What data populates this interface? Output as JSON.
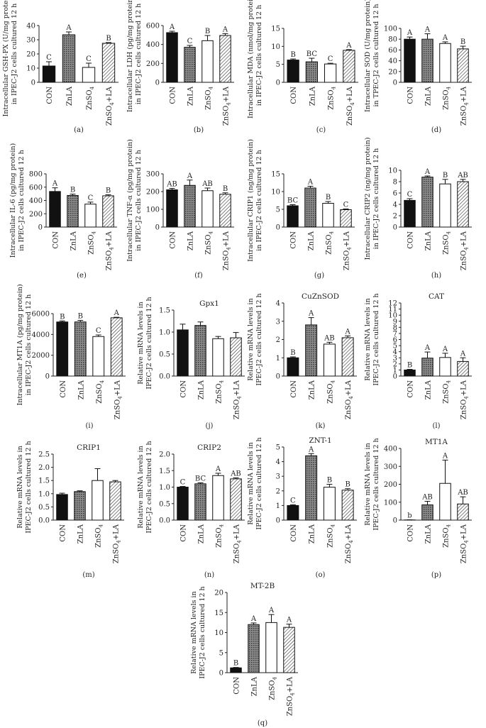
{
  "colors": {
    "axis": "#222222",
    "black": "#111111",
    "white": "#ffffff",
    "gray": "#9a9a9a"
  },
  "chart_data": [
    {
      "id": "a",
      "type": "bar",
      "panel_label": "(a)",
      "ylabel": [
        "Intracellular GSH-PX (U/mg protein)",
        "in IPEC-J2 cells cultured 12 h"
      ],
      "categories": [
        "CON",
        "ZnLA",
        "ZnSO4",
        "ZnSO4+LA"
      ],
      "values": [
        11.5,
        33.5,
        10.5,
        27.5
      ],
      "errors": [
        3,
        2,
        3,
        0.5
      ],
      "letters": [
        "C",
        "A",
        "C",
        "B"
      ],
      "ylim": [
        0,
        40
      ],
      "yticks": [
        0,
        10,
        20,
        30,
        40
      ]
    },
    {
      "id": "b",
      "type": "bar",
      "panel_label": "(b)",
      "ylabel": [
        "Intracellular LDH (pg/mg protein)",
        "in IPEC-J2 cells cultured 12 h"
      ],
      "categories": [
        "CON",
        "ZnLA",
        "ZnSO4",
        "ZnSO4+LA"
      ],
      "values": [
        525,
        370,
        440,
        495
      ],
      "errors": [
        15,
        20,
        55,
        20
      ],
      "letters": [
        "A",
        "C",
        "B",
        "A"
      ],
      "ylim": [
        0,
        600
      ],
      "yticks": [
        0,
        200,
        400,
        600
      ]
    },
    {
      "id": "c",
      "type": "bar",
      "panel_label": "(c)",
      "ylabel": [
        "Intracellular MDA (nmol/mg protein)",
        "in IPEC-J2 cells cultured 12 h"
      ],
      "categories": [
        "CON",
        "ZnLA",
        "ZnSO4",
        "ZnSO4+LA"
      ],
      "values": [
        6.2,
        5.7,
        5.1,
        8.9
      ],
      "errors": [
        0.3,
        1,
        0.2,
        0.2
      ],
      "letters": [
        "B",
        "BC",
        "C",
        "A"
      ],
      "ylim": [
        0,
        15
      ],
      "yticks": [
        0,
        5,
        10,
        15
      ]
    },
    {
      "id": "d",
      "type": "bar",
      "panel_label": "(d)",
      "ylabel": [
        "Intracellular SOD (U/mg protein)",
        "in TPEC-J2 cells cultured 12 h"
      ],
      "categories": [
        "CON",
        "ZnLA",
        "ZnSO4",
        "ZnSO4+LA"
      ],
      "values": [
        80,
        80,
        72,
        62
      ],
      "errors": [
        4,
        10,
        3,
        5
      ],
      "letters": [
        "A",
        "A",
        "A",
        "B"
      ],
      "ylim": [
        0,
        100
      ],
      "yticks": [
        0,
        20,
        40,
        60,
        80,
        100
      ]
    },
    {
      "id": "e",
      "type": "bar",
      "panel_label": "(e)",
      "ylabel": [
        "Intracellular IL-6 (pg/mg protein)",
        "in IPEC-J2 cells cultured 12 h"
      ],
      "categories": [
        "CON",
        "ZnLA",
        "ZnSO4",
        "ZnSO4+LA"
      ],
      "values": [
        535,
        475,
        345,
        470
      ],
      "errors": [
        55,
        20,
        30,
        15
      ],
      "letters": [
        "A",
        "B",
        "C",
        "B"
      ],
      "ylim": [
        0,
        800
      ],
      "yticks": [
        0,
        200,
        400,
        600,
        800
      ]
    },
    {
      "id": "f",
      "type": "bar",
      "panel_label": "(f)",
      "ylabel": [
        "Intracellular TNF-α (pg/mg protein)",
        "in IPEC-J2 cells cultured 12 h"
      ],
      "categories": [
        "CON",
        "ZnLA",
        "ZnSO4",
        "ZnSO4+LA"
      ],
      "values": [
        210,
        235,
        205,
        185
      ],
      "errors": [
        8,
        30,
        15,
        8
      ],
      "letters": [
        "AB",
        "A",
        "AB",
        "B"
      ],
      "ylim": [
        0,
        300
      ],
      "yticks": [
        0,
        100,
        200,
        300
      ]
    },
    {
      "id": "g",
      "type": "bar",
      "panel_label": "(g)",
      "ylabel": [
        "Intracellular CRIP1 (ng/mg protein)",
        "in IPEC-J2 cells cultured 12 h"
      ],
      "categories": [
        "CON",
        "ZnLA",
        "ZnSO4",
        "ZnSO4+LA"
      ],
      "values": [
        6,
        11,
        6.7,
        4.9
      ],
      "errors": [
        0.3,
        0.5,
        0.5,
        0.2
      ],
      "letters": [
        "BC",
        "A",
        "B",
        "C"
      ],
      "ylim": [
        0,
        15
      ],
      "yticks": [
        0,
        5,
        10,
        15
      ]
    },
    {
      "id": "h",
      "type": "bar",
      "panel_label": "(h)",
      "ylabel": [
        "Intracellular CRIP2 (ng/mg protein)",
        "in IPEC-J2 cells cultured 12 h"
      ],
      "categories": [
        "CON",
        "ZnLA",
        "ZnSO4",
        "ZnSO4+LA"
      ],
      "values": [
        4.7,
        8.8,
        7.6,
        8
      ],
      "errors": [
        0.3,
        0.2,
        0.8,
        0.4
      ],
      "letters": [
        "C",
        "A",
        "B",
        "AB"
      ],
      "ylim": [
        0,
        10
      ],
      "yticks": [
        0,
        2,
        4,
        6,
        8,
        10
      ]
    },
    {
      "id": "i",
      "type": "bar",
      "panel_label": "(i)",
      "ylabel": [
        "Intracellular MT1A (pg/mg protein)",
        "in IPEC-J2 cells cultured 12 h"
      ],
      "categories": [
        "CON",
        "ZnLA",
        "ZnSO4",
        "ZnSO4+LA"
      ],
      "values": [
        5200,
        5200,
        3800,
        5600
      ],
      "errors": [
        100,
        150,
        150,
        50
      ],
      "letters": [
        "B",
        "B",
        "C",
        "A"
      ],
      "ylim": [
        0,
        6000
      ],
      "yticks": [
        0,
        2000,
        4000,
        6000
      ]
    },
    {
      "id": "j",
      "type": "bar",
      "panel_label": "(j)",
      "title": "Gpx1",
      "ylabel": [
        "Relative mRNA levels in",
        "IPEC-J2 cells cultured 12 h"
      ],
      "categories": [
        "CON",
        "ZnLA",
        "ZnSO4",
        "ZnSO4+LA"
      ],
      "values": [
        1.05,
        1.15,
        0.85,
        0.87
      ],
      "errors": [
        0.13,
        0.08,
        0.05,
        0.12
      ],
      "letters": [
        "",
        "",
        "",
        ""
      ],
      "ylim": [
        0,
        1.5
      ],
      "yticks": [
        0,
        0.5,
        1.0,
        1.5
      ]
    },
    {
      "id": "k",
      "type": "bar",
      "panel_label": "(k)",
      "title": "CuZnSOD",
      "ylabel": [
        "Relative mRNA levels in",
        "IPEC-J2 cells cultured 12 h"
      ],
      "categories": [
        "CON",
        "ZnLA",
        "ZnSO4",
        "ZnSO4+LA"
      ],
      "values": [
        1,
        2.8,
        1.75,
        2.1
      ],
      "errors": [
        0.05,
        0.4,
        0.1,
        0.1
      ],
      "letters": [
        "B",
        "A",
        "AB",
        "A"
      ],
      "ylim": [
        0,
        4
      ],
      "yticks": [
        0,
        1,
        2,
        3,
        4
      ]
    },
    {
      "id": "l",
      "type": "bar",
      "panel_label": "(l)",
      "title": "CAT",
      "ylabel": [
        "Relative mRNA levels in",
        "IPEC-J2 cells cultured 12 h"
      ],
      "categories": [
        "CON",
        "ZnLA",
        "ZnSO4",
        "ZnSO4+LA"
      ],
      "values": [
        1,
        2.95,
        3.05,
        2.4
      ],
      "errors": [
        0.1,
        1,
        0.7,
        0.6
      ],
      "letters": [
        "B",
        "A",
        "A",
        "A"
      ],
      "ylim": [
        0,
        12
      ],
      "yticks": [
        0,
        1,
        2,
        3,
        4,
        5,
        6,
        7,
        8,
        9,
        10,
        11,
        12
      ]
    },
    {
      "id": "m",
      "type": "bar",
      "panel_label": "(m)",
      "title": "CRIP1",
      "ylabel": [
        "Relative mRNA levels in",
        "IPEC-J2 cells cultured 12 h"
      ],
      "categories": [
        "CON",
        "ZnLA",
        "ZnSO4",
        "ZnSO4+LA"
      ],
      "values": [
        0.97,
        1.08,
        1.5,
        1.45
      ],
      "errors": [
        0.05,
        0.03,
        0.45,
        0.05
      ],
      "letters": [
        "",
        "",
        "",
        ""
      ],
      "ylim": [
        0,
        2.5
      ],
      "yticks": [
        0,
        0.5,
        1.0,
        1.5,
        2.0,
        2.5
      ]
    },
    {
      "id": "n",
      "type": "bar",
      "panel_label": "(n)",
      "title": "CRIP2",
      "ylabel": [
        "Relative mRNA levels in",
        "IPEC-J2 cells cultured 12 h"
      ],
      "categories": [
        "CON",
        "ZnLA",
        "ZnSO4",
        "ZnSO4+LA"
      ],
      "values": [
        1,
        1.1,
        1.35,
        1.25
      ],
      "errors": [
        0.02,
        0.03,
        0.07,
        0.03
      ],
      "letters": [
        "C",
        "BC",
        "A",
        "AB"
      ],
      "ylim": [
        0,
        2
      ],
      "yticks": [
        0,
        0.5,
        1.0,
        1.5,
        2.0
      ]
    },
    {
      "id": "o",
      "type": "bar",
      "panel_label": "(o)",
      "title": "ZNT-1",
      "ylabel": [
        "Relative mRNA levels in",
        "IPEC-J2 cells cultured 12 h"
      ],
      "categories": [
        "CON",
        "ZnLA",
        "ZnSO4",
        "ZnSO4+LA"
      ],
      "values": [
        1,
        4.4,
        2.25,
        2.05
      ],
      "errors": [
        0.05,
        0.15,
        0.2,
        0.1
      ],
      "letters": [
        "C",
        "A",
        "B",
        "B"
      ],
      "ylim": [
        0,
        5
      ],
      "yticks": [
        0,
        1,
        2,
        3,
        4,
        5
      ]
    },
    {
      "id": "p",
      "type": "bar",
      "panel_label": "(p)",
      "title": "MT1A",
      "ylabel": [
        "Relative mRNA levels in",
        "IPEC-J2 cells cultured 12 h"
      ],
      "categories": [
        "CON",
        "ZnLA",
        "ZnSO4",
        "ZnSO4+LA"
      ],
      "values": [
        1,
        85,
        205,
        90
      ],
      "errors": [
        0.5,
        20,
        130,
        40
      ],
      "letters": [
        "b",
        "AB",
        "A",
        "AB"
      ],
      "ylim": [
        0,
        400
      ],
      "yticks": [
        0,
        100,
        200,
        300,
        400
      ]
    },
    {
      "id": "q",
      "type": "bar",
      "panel_label": "(q)",
      "title": "MT-2B",
      "ylabel": [
        "Relative mRNA levels in",
        "IPEC-J2 cells cultured 12 h"
      ],
      "categories": [
        "CON",
        "ZnLA",
        "ZnSO4",
        "ZnSO4+LA"
      ],
      "values": [
        1.2,
        12,
        12.5,
        11.3
      ],
      "errors": [
        0.1,
        0.4,
        2,
        0.8
      ],
      "letters": [
        "B",
        "A",
        "A",
        "A"
      ],
      "ylim": [
        0,
        20
      ],
      "yticks": [
        0,
        5,
        10,
        15,
        20
      ]
    }
  ]
}
